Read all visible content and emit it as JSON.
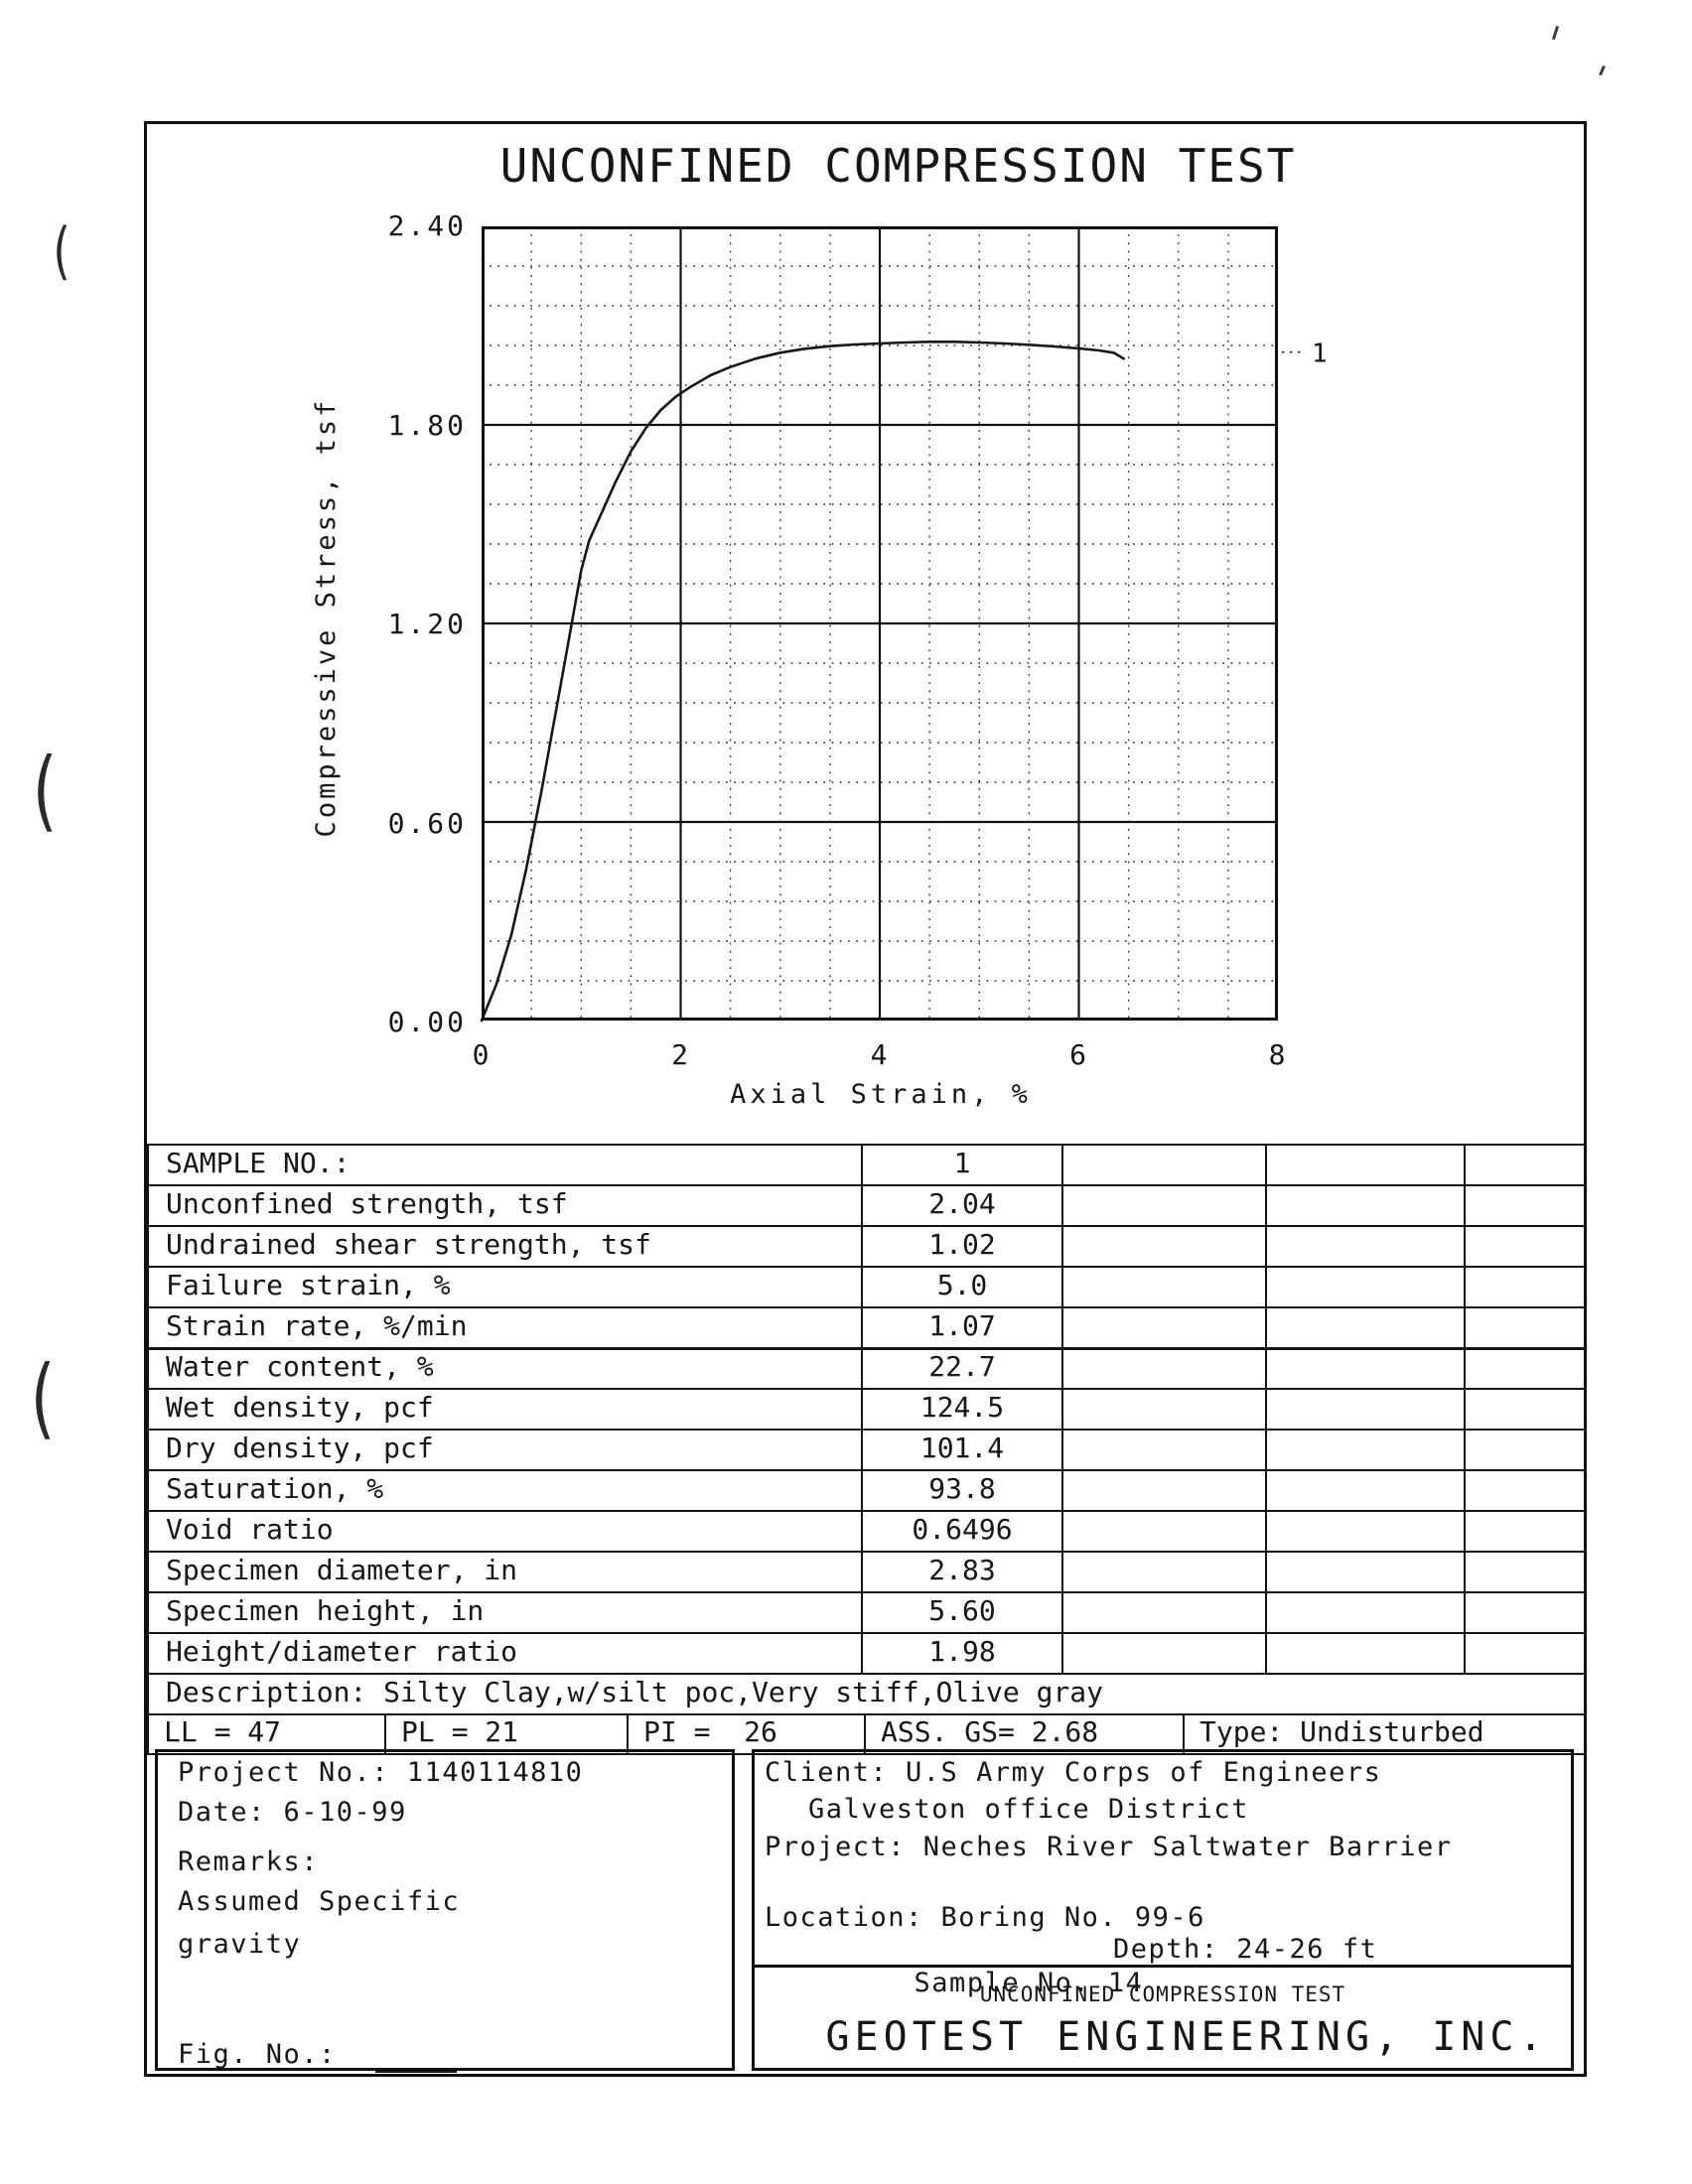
{
  "doc": {
    "title": "UNCONFINED COMPRESSION TEST"
  },
  "chart_data": {
    "type": "line",
    "title": "UNCONFINED COMPRESSION TEST",
    "xlabel": "Axial Strain, %",
    "ylabel": "Compressive Stress, tsf",
    "xlim": [
      0,
      8
    ],
    "ylim": [
      0,
      2.4
    ],
    "x_tick_labels": [
      "0",
      "2",
      "4",
      "6",
      "8"
    ],
    "y_tick_labels": [
      "2.40",
      "1.80",
      "1.20",
      "0.60",
      "0.00"
    ],
    "x_minor_step": 0.5,
    "y_minor_step": 0.12,
    "grid": "major solid, minor dotted",
    "legend_position": "right edge, leader to curve end",
    "series": [
      {
        "name": "1",
        "points": [
          [
            0,
            0
          ],
          [
            0.15,
            0.11
          ],
          [
            0.3,
            0.26
          ],
          [
            0.45,
            0.46
          ],
          [
            0.6,
            0.69
          ],
          [
            0.75,
            0.94
          ],
          [
            0.9,
            1.19
          ],
          [
            1.0,
            1.36
          ],
          [
            1.08,
            1.45
          ],
          [
            1.2,
            1.53
          ],
          [
            1.35,
            1.63
          ],
          [
            1.5,
            1.72
          ],
          [
            1.65,
            1.79
          ],
          [
            1.8,
            1.845
          ],
          [
            1.95,
            1.885
          ],
          [
            2.1,
            1.915
          ],
          [
            2.3,
            1.95
          ],
          [
            2.5,
            1.975
          ],
          [
            2.75,
            2.0
          ],
          [
            3.0,
            2.018
          ],
          [
            3.25,
            2.03
          ],
          [
            3.5,
            2.038
          ],
          [
            3.75,
            2.043
          ],
          [
            4.0,
            2.046
          ],
          [
            4.25,
            2.049
          ],
          [
            4.5,
            2.051
          ],
          [
            4.75,
            2.051
          ],
          [
            5.0,
            2.049
          ],
          [
            5.25,
            2.046
          ],
          [
            5.5,
            2.042
          ],
          [
            5.75,
            2.037
          ],
          [
            6.0,
            2.031
          ],
          [
            6.2,
            2.025
          ],
          [
            6.35,
            2.018
          ],
          [
            6.45,
            2.0
          ]
        ],
        "label_value_tsf": 2.02
      }
    ]
  },
  "table": {
    "rows": [
      {
        "label": "SAMPLE NO.:",
        "value": "1"
      },
      {
        "label": "Unconfined strength, tsf",
        "value": "2.04"
      },
      {
        "label": "Undrained shear strength, tsf",
        "value": "1.02"
      },
      {
        "label": "Failure strain, %",
        "value": "5.0"
      },
      {
        "label": "Strain rate, %/min",
        "value": "1.07",
        "section_break": true
      },
      {
        "label": "Water content, %",
        "value": "22.7"
      },
      {
        "label": "Wet density, pcf",
        "value": "124.5"
      },
      {
        "label": "Dry density, pcf",
        "value": "101.4"
      },
      {
        "label": "Saturation, %",
        "value": "93.8"
      },
      {
        "label": "Void ratio",
        "value": "0.6496"
      },
      {
        "label": "Specimen diameter, in",
        "value": "2.83"
      },
      {
        "label": "Specimen height, in",
        "value": "5.60"
      },
      {
        "label": "Height/diameter ratio",
        "value": "1.98"
      }
    ],
    "empty_value_columns": 3
  },
  "description": "Description: Silty Clay,w/silt poc,Very stiff,Olive gray",
  "atterberg": {
    "ll": "LL = 47",
    "pl": "PL = 21",
    "pi": "PI =  26",
    "gs": "ASS. GS= 2.68",
    "type": "Type: Undisturbed"
  },
  "footer": {
    "left": {
      "project_no": "Project No.: 1140114810",
      "date": "Date: 6-10-99",
      "remarks_label": "Remarks:",
      "remarks_line1": "Assumed Specific",
      "remarks_line2": "gravity",
      "fig_no_label": "Fig. No.:"
    },
    "right": {
      "client_line1": "Client: U.S Army Corps of Engineers",
      "client_line2": "Galveston office District",
      "project": "Project: Neches River Saltwater Barrier",
      "location": "Location: Boring No. 99-6",
      "sample": "Sample No. 14",
      "depth": "Depth: 24-26 ft",
      "test_name": "UNCONFINED COMPRESSION TEST",
      "company": "GEOTEST ENGINEERING, INC."
    }
  }
}
